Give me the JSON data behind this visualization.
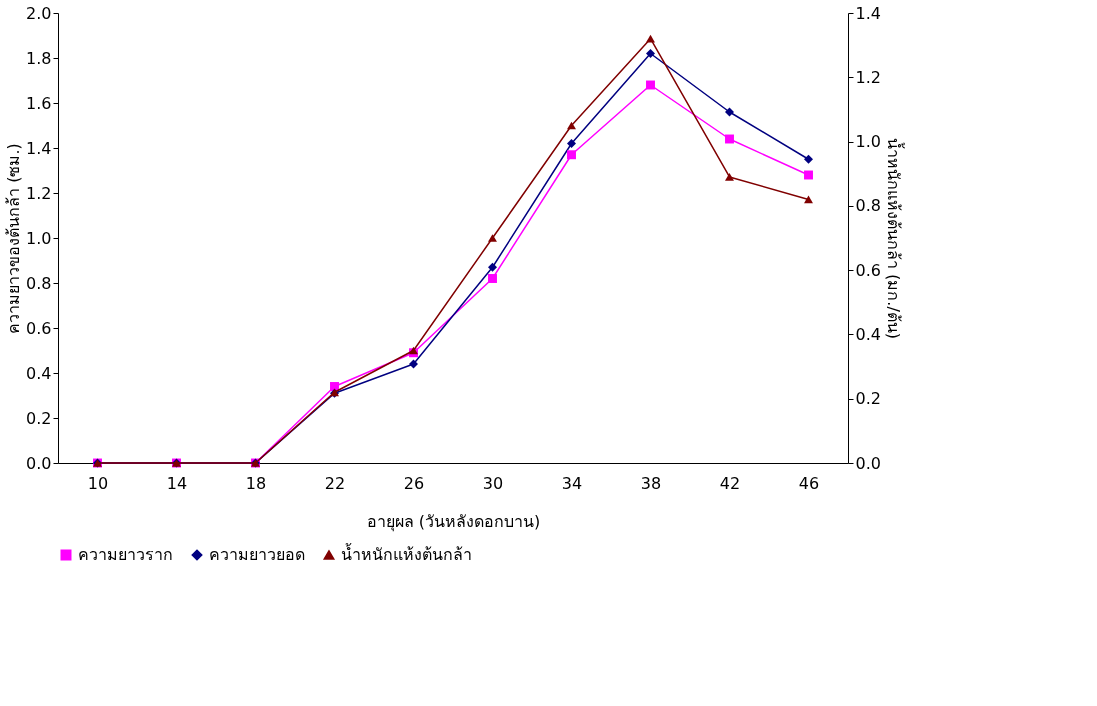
{
  "chart_data": {
    "type": "line",
    "xlabel": "อายุผล (วันหลังดอกบาน)",
    "ylabel": "ความยาวของต้นกล้า (ซม.)",
    "y2label": "น้ำหนักแห้งต้นกล้า (มก./ต้น)",
    "categories": [
      "10",
      "14",
      "18",
      "22",
      "26",
      "30",
      "34",
      "38",
      "42",
      "46"
    ],
    "series": [
      {
        "name": "ความยาวราก",
        "color": "#ff00ff",
        "marker": "square",
        "values": [
          0,
          0,
          0,
          0.34,
          0.49,
          0.82,
          1.37,
          1.68,
          1.44,
          1.28
        ]
      },
      {
        "name": "ความยาวยอด",
        "color": "#000080",
        "marker": "diamond",
        "values": [
          0,
          0,
          0,
          0.31,
          0.44,
          0.87,
          1.42,
          1.82,
          1.56,
          1.35
        ]
      },
      {
        "name": "น้ำหนักแห้งต้นกล้า",
        "color": "#800000",
        "marker": "triangle",
        "axis": "y2",
        "values": [
          0,
          0,
          0,
          0.22,
          0.35,
          0.7,
          1.05,
          1.32,
          0.89,
          0.82
        ]
      }
    ],
    "ylim": [
      0,
      2
    ],
    "yticks": [
      {
        "value": 0,
        "label": "0.0"
      },
      {
        "value": 0.2,
        "label": "0.2"
      },
      {
        "value": 0.4,
        "label": "0.4"
      },
      {
        "value": 0.6,
        "label": "0.6"
      },
      {
        "value": 0.8,
        "label": "0.8"
      },
      {
        "value": 1,
        "label": "1.0"
      },
      {
        "value": 1.2,
        "label": "1.2"
      },
      {
        "value": 1.4,
        "label": "1.4"
      },
      {
        "value": 1.6,
        "label": "1.6"
      },
      {
        "value": 1.8,
        "label": "1.8"
      },
      {
        "value": 2,
        "label": "2.0"
      }
    ],
    "y2lim": [
      0,
      1.4
    ],
    "y2ticks": [
      {
        "value": 0,
        "label": "0.0"
      },
      {
        "value": 0.2,
        "label": "0.2"
      },
      {
        "value": 0.4,
        "label": "0.4"
      },
      {
        "value": 0.6,
        "label": "0.6"
      },
      {
        "value": 0.8,
        "label": "0.8"
      },
      {
        "value": 1,
        "label": "1.0"
      },
      {
        "value": 1.2,
        "label": "1.2"
      },
      {
        "value": 1.4,
        "label": "1.4"
      }
    ],
    "grid": false,
    "legend": "bottom",
    "line_style": "solid"
  }
}
